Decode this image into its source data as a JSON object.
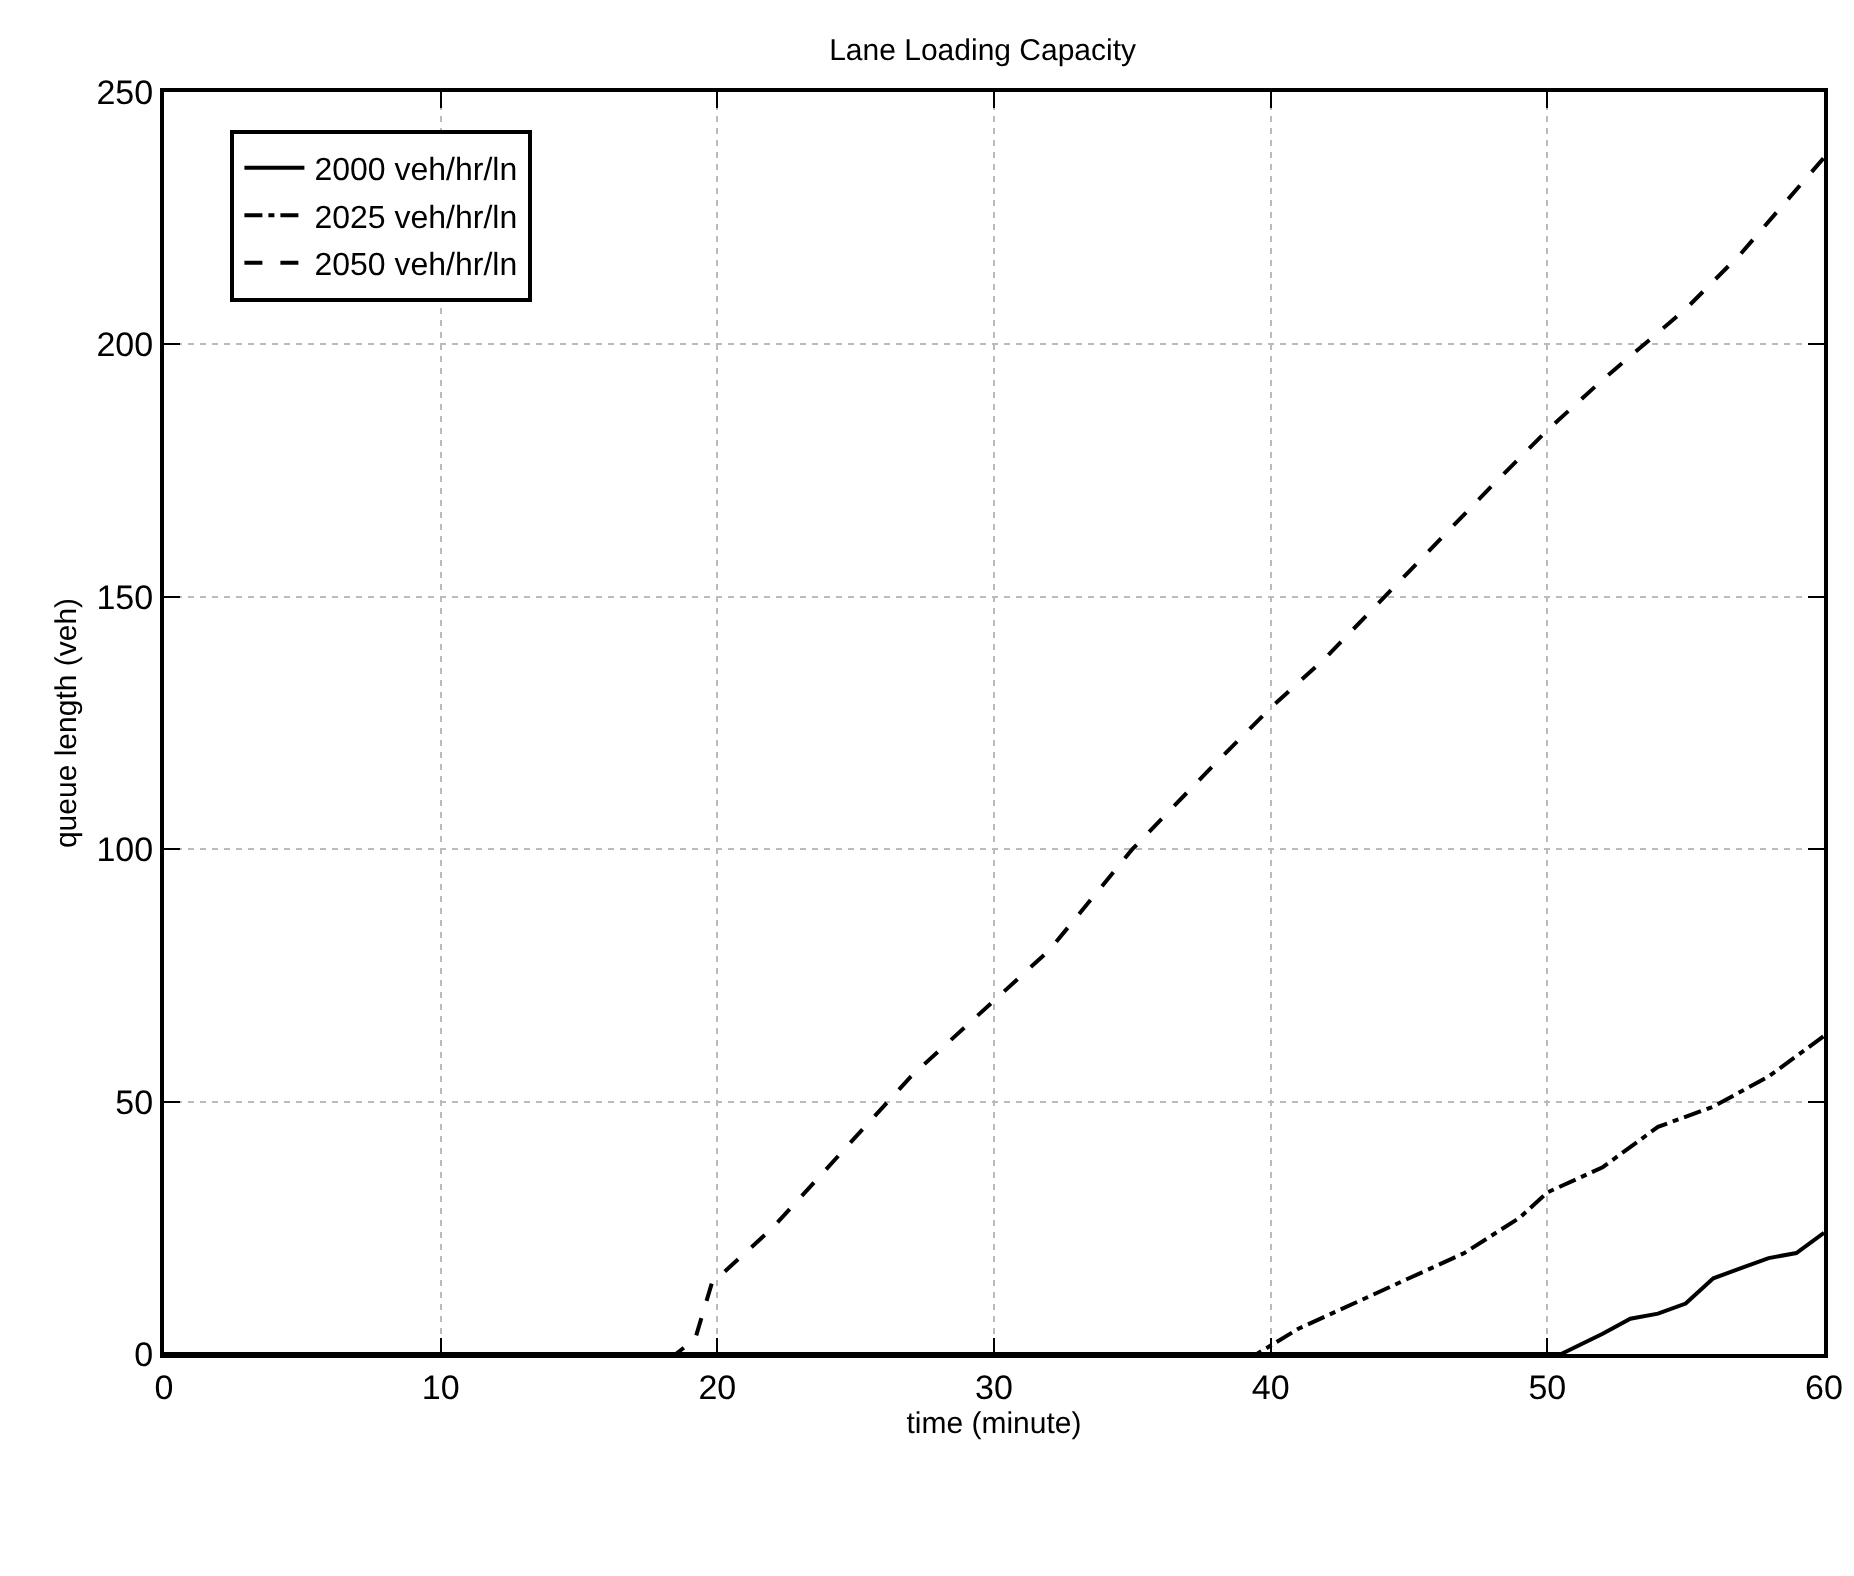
{
  "chart_data": {
    "type": "line",
    "title": "Lane Loading Capacity",
    "xlabel": "time (minute)",
    "ylabel": "queue length (veh)",
    "xlim": [
      0,
      60
    ],
    "xticks": [
      0,
      10,
      20,
      30,
      40,
      50,
      60
    ],
    "ylim": [
      0,
      250
    ],
    "yticks": [
      0,
      50,
      100,
      150,
      200,
      250
    ],
    "grid": true,
    "legend": "top left",
    "marker": "none",
    "series": [
      {
        "name": "2000 veh/hr/ln",
        "color": "#000000",
        "line_style": "solid",
        "x": [
          0,
          50.5,
          52,
          53,
          54,
          55,
          56,
          57,
          58,
          59,
          60
        ],
        "values": [
          0,
          0,
          4,
          7,
          8,
          10,
          15,
          17,
          19,
          20,
          24
        ]
      },
      {
        "name": "2025 veh/hr/ln",
        "color": "#000000",
        "line_style": "dashdot",
        "x": [
          0,
          39.5,
          41,
          43,
          45,
          47,
          49,
          50,
          52,
          54,
          56,
          58,
          60
        ],
        "values": [
          0,
          0,
          5,
          10,
          15,
          20,
          27,
          32,
          37,
          45,
          49,
          55,
          63
        ]
      },
      {
        "name": "2050 veh/hr/ln",
        "color": "#000000",
        "line_style": "dashed",
        "x": [
          0,
          18.5,
          19.2,
          19.8,
          21,
          22,
          25,
          27,
          30,
          32,
          35,
          38,
          40,
          42,
          45,
          48,
          50,
          52,
          55,
          57,
          60
        ],
        "values": [
          0,
          0,
          3,
          14,
          20,
          25,
          43,
          55,
          70,
          80,
          100,
          117,
          128,
          138,
          155,
          172,
          183,
          193,
          207,
          218,
          237
        ]
      }
    ]
  }
}
